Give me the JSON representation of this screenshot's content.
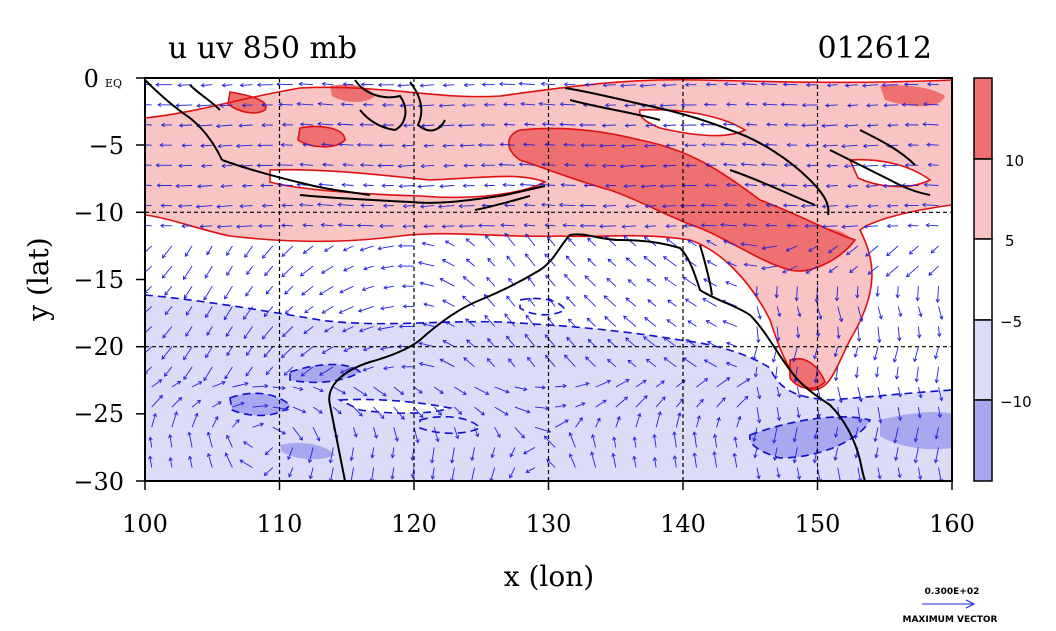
{
  "map": {
    "title_left": "u  uv  850  mb",
    "title_right": "012612",
    "xlabel": "x (lon)",
    "ylabel": "y (lat)",
    "x_ticks": [
      "100",
      "110",
      "120",
      "130",
      "140",
      "150",
      "160"
    ],
    "y_ticks": [
      "0 EQ",
      "−5",
      "−10",
      "−15",
      "−20",
      "−25",
      "−30"
    ],
    "extent": {
      "lon": [
        100,
        160
      ],
      "lat": [
        -30,
        0
      ]
    },
    "grid_lon": [
      110,
      120,
      130,
      140,
      150
    ],
    "grid_lat": [
      -10,
      -20
    ],
    "colorbar_labels": [
      "10",
      "5",
      "−5",
      "−10"
    ],
    "colorbar_colors": [
      "#ee7070",
      "#f8c4c4",
      "#ffffff",
      "#dcdcf8",
      "#a8a8f0"
    ],
    "vector_legend_value": "0.300E+02",
    "vector_legend_label": "MAXIMUM VECTOR",
    "colors": {
      "positive_contour": "#e01010",
      "negative_contour": "#1010d0",
      "vector": "#2222dd",
      "coast": "#000000"
    }
  }
}
